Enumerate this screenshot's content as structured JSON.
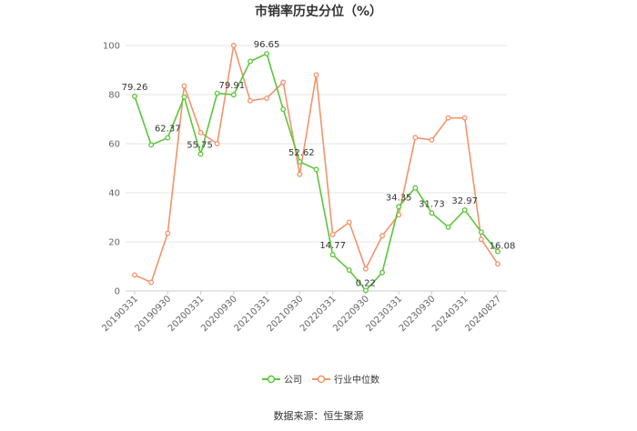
{
  "chart_data": {
    "type": "line",
    "title": "市销率历史分位（%）",
    "xlabel": "",
    "ylabel": "",
    "ylim": [
      0,
      100
    ],
    "yticks": [
      0,
      20,
      40,
      60,
      80,
      100
    ],
    "x_tick_labels": [
      "20190331",
      "20190930",
      "20200331",
      "20200930",
      "20210331",
      "20210930",
      "20220331",
      "20220930",
      "20230331",
      "20230930",
      "20240331",
      "20240827"
    ],
    "grid": true,
    "legend_position": "bottom",
    "series": [
      {
        "name": "公司",
        "color": "#5cc63a",
        "values": [
          79.26,
          59.5,
          62.37,
          79.0,
          55.75,
          80.5,
          79.91,
          93.5,
          96.65,
          74.0,
          52.62,
          49.5,
          14.77,
          8.5,
          0.22,
          7.5,
          34.35,
          42.0,
          31.73,
          26.0,
          32.97,
          24.0,
          16.08
        ],
        "labels": {
          "0": "79.26",
          "2": "62.37",
          "4": "55.75",
          "6": "79.91",
          "8": "96.65",
          "10": "52.62",
          "12": "14.77",
          "14": "0.22",
          "16": "34.35",
          "18": "31.73",
          "20": "32.97",
          "22": "16.08"
        }
      },
      {
        "name": "行业中位数",
        "color": "#f4936a",
        "values": [
          6.5,
          3.5,
          23.5,
          83.5,
          64.5,
          60.0,
          100.0,
          77.5,
          78.5,
          85.0,
          47.5,
          88.0,
          23.0,
          28.0,
          9.0,
          22.5,
          31.0,
          62.5,
          61.5,
          70.5,
          70.5,
          21.0,
          11.0
        ]
      }
    ]
  },
  "legend": [
    "公司",
    "行业中位数"
  ],
  "source": "数据来源：恒生聚源"
}
